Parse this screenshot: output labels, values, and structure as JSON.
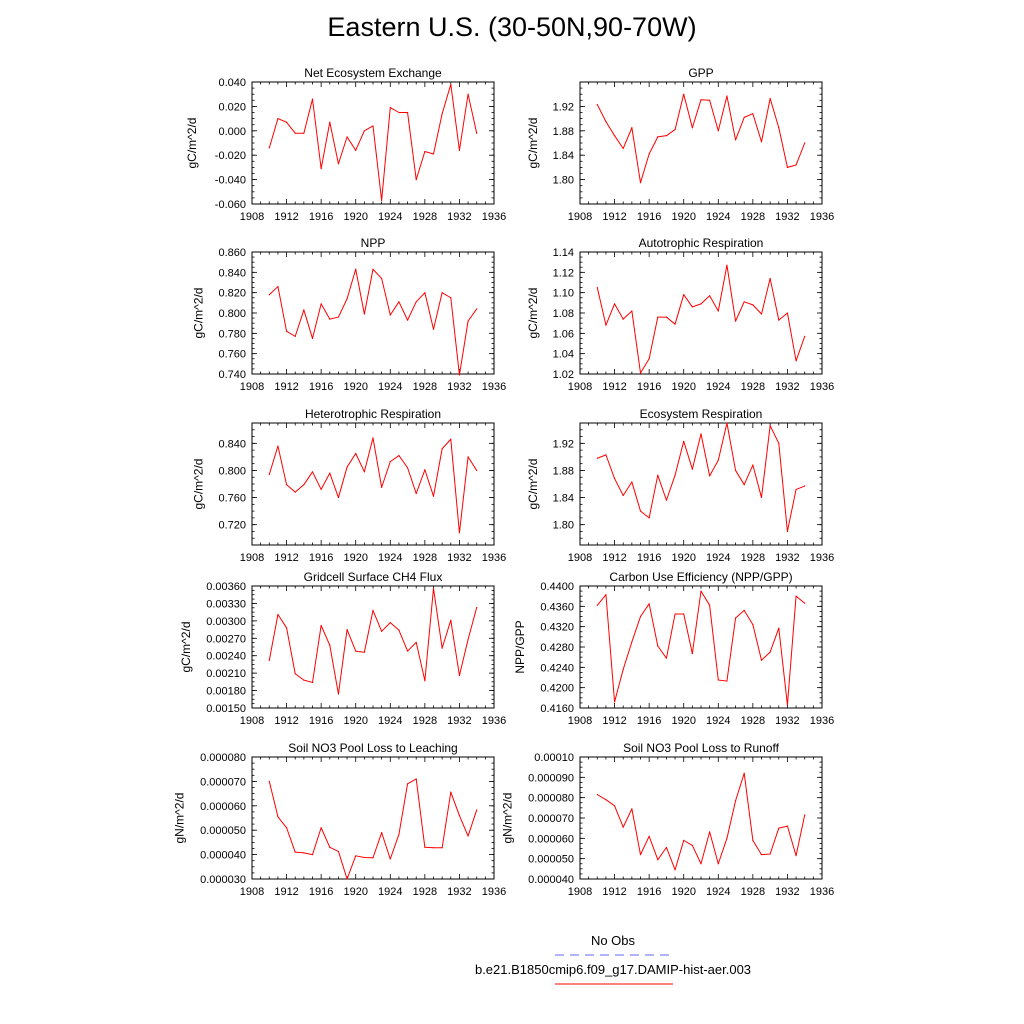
{
  "title": "Eastern U.S. (30-50N,90-70W)",
  "legend": {
    "obs_label": "No Obs",
    "obs_color": "#6666ff",
    "model_label": "b.e21.B1850cmip6.f09_g17.DAMIP-hist-aer.003",
    "model_color": "#ff0000"
  },
  "chart_data": [
    {
      "type": "line",
      "title": "Net Ecosystem Exchange",
      "ylabel": "gC/m^2/d",
      "xlim": [
        1908,
        1936
      ],
      "xticks": [
        1908,
        1912,
        1916,
        1920,
        1924,
        1928,
        1932,
        1936
      ],
      "xtick_labels": [
        "1908",
        "1912",
        "1916",
        "1920",
        "1924",
        "1928",
        "1932",
        "1936"
      ],
      "ylim": [
        -0.06,
        0.04
      ],
      "yticks": [
        -0.06,
        -0.04,
        -0.02,
        0.0,
        0.02,
        0.04
      ],
      "ytick_labels": [
        "-0.060",
        "-0.040",
        "-0.020",
        "0.000",
        "0.020",
        "0.040"
      ],
      "x": [
        1910,
        1911,
        1912,
        1913,
        1914,
        1915,
        1916,
        1917,
        1918,
        1919,
        1920,
        1921,
        1922,
        1923,
        1924,
        1925,
        1926,
        1927,
        1928,
        1929,
        1930,
        1931,
        1932,
        1933,
        1934
      ],
      "values": [
        -0.014,
        0.01,
        0.007,
        -0.002,
        -0.002,
        0.026,
        -0.031,
        0.007,
        -0.027,
        -0.005,
        -0.016,
        0.0,
        0.004,
        -0.057,
        0.019,
        0.015,
        0.015,
        -0.04,
        -0.017,
        -0.019,
        0.014,
        0.038,
        -0.016,
        0.03,
        -0.002
      ]
    },
    {
      "type": "line",
      "title": "GPP",
      "ylabel": "gC/m^2/d",
      "xlim": [
        1908,
        1936
      ],
      "xticks": [
        1908,
        1912,
        1916,
        1920,
        1924,
        1928,
        1932,
        1936
      ],
      "xtick_labels": [
        "1908",
        "1912",
        "1916",
        "1920",
        "1924",
        "1928",
        "1932",
        "1936"
      ],
      "ylim": [
        1.76,
        1.96
      ],
      "yticks": [
        1.8,
        1.84,
        1.88,
        1.92
      ],
      "ytick_labels": [
        "1.80",
        "1.84",
        "1.88",
        "1.92"
      ],
      "x": [
        1910,
        1911,
        1912,
        1913,
        1914,
        1915,
        1916,
        1917,
        1918,
        1919,
        1920,
        1921,
        1922,
        1923,
        1924,
        1925,
        1926,
        1927,
        1928,
        1929,
        1930,
        1931,
        1932,
        1933,
        1934
      ],
      "values": [
        1.923,
        1.895,
        1.872,
        1.851,
        1.885,
        1.795,
        1.842,
        1.87,
        1.872,
        1.882,
        1.94,
        1.885,
        1.931,
        1.93,
        1.88,
        1.937,
        1.865,
        1.902,
        1.908,
        1.862,
        1.933,
        1.885,
        1.82,
        1.824,
        1.86
      ]
    },
    {
      "type": "line",
      "title": "NPP",
      "ylabel": "gC/m^2/d",
      "xlim": [
        1908,
        1936
      ],
      "xticks": [
        1908,
        1912,
        1916,
        1920,
        1924,
        1928,
        1932,
        1936
      ],
      "xtick_labels": [
        "1908",
        "1912",
        "1916",
        "1920",
        "1924",
        "1928",
        "1932",
        "1936"
      ],
      "ylim": [
        0.74,
        0.86
      ],
      "yticks": [
        0.74,
        0.76,
        0.78,
        0.8,
        0.82,
        0.84,
        0.86
      ],
      "ytick_labels": [
        "0.740",
        "0.760",
        "0.780",
        "0.800",
        "0.820",
        "0.840",
        "0.860"
      ],
      "x": [
        1910,
        1911,
        1912,
        1913,
        1914,
        1915,
        1916,
        1917,
        1918,
        1919,
        1920,
        1921,
        1922,
        1923,
        1924,
        1925,
        1926,
        1927,
        1928,
        1929,
        1930,
        1931,
        1932,
        1933,
        1934
      ],
      "values": [
        0.818,
        0.826,
        0.782,
        0.777,
        0.803,
        0.775,
        0.809,
        0.794,
        0.796,
        0.814,
        0.843,
        0.799,
        0.843,
        0.834,
        0.798,
        0.811,
        0.793,
        0.811,
        0.82,
        0.784,
        0.82,
        0.815,
        0.739,
        0.792,
        0.804
      ]
    },
    {
      "type": "line",
      "title": "Autotrophic Respiration",
      "ylabel": "gC/m^2/d",
      "xlim": [
        1908,
        1936
      ],
      "xticks": [
        1908,
        1912,
        1916,
        1920,
        1924,
        1928,
        1932,
        1936
      ],
      "xtick_labels": [
        "1908",
        "1912",
        "1916",
        "1920",
        "1924",
        "1928",
        "1932",
        "1936"
      ],
      "ylim": [
        1.02,
        1.14
      ],
      "yticks": [
        1.02,
        1.04,
        1.06,
        1.08,
        1.1,
        1.12,
        1.14
      ],
      "ytick_labels": [
        "1.02",
        "1.04",
        "1.06",
        "1.08",
        "1.10",
        "1.12",
        "1.14"
      ],
      "x": [
        1910,
        1911,
        1912,
        1913,
        1914,
        1915,
        1916,
        1917,
        1918,
        1919,
        1920,
        1921,
        1922,
        1923,
        1924,
        1925,
        1926,
        1927,
        1928,
        1929,
        1930,
        1931,
        1932,
        1933,
        1934
      ],
      "values": [
        1.105,
        1.068,
        1.089,
        1.074,
        1.082,
        1.021,
        1.035,
        1.076,
        1.076,
        1.069,
        1.098,
        1.086,
        1.089,
        1.097,
        1.082,
        1.127,
        1.072,
        1.091,
        1.088,
        1.079,
        1.114,
        1.073,
        1.08,
        1.033,
        1.057
      ]
    },
    {
      "type": "line",
      "title": "Heterotrophic Respiration",
      "ylabel": "gC/m^2/d",
      "xlim": [
        1908,
        1936
      ],
      "xticks": [
        1908,
        1912,
        1916,
        1920,
        1924,
        1928,
        1932,
        1936
      ],
      "xtick_labels": [
        "1908",
        "1912",
        "1916",
        "1920",
        "1924",
        "1928",
        "1932",
        "1936"
      ],
      "ylim": [
        0.69,
        0.87
      ],
      "yticks": [
        0.72,
        0.76,
        0.8,
        0.84
      ],
      "ytick_labels": [
        "0.720",
        "0.760",
        "0.800",
        "0.840"
      ],
      "x": [
        1910,
        1911,
        1912,
        1913,
        1914,
        1915,
        1916,
        1917,
        1918,
        1919,
        1920,
        1921,
        1922,
        1923,
        1924,
        1925,
        1926,
        1927,
        1928,
        1929,
        1930,
        1931,
        1932,
        1933,
        1934
      ],
      "values": [
        0.794,
        0.836,
        0.779,
        0.768,
        0.779,
        0.798,
        0.772,
        0.796,
        0.76,
        0.805,
        0.825,
        0.798,
        0.848,
        0.775,
        0.813,
        0.822,
        0.804,
        0.766,
        0.801,
        0.762,
        0.832,
        0.846,
        0.708,
        0.82,
        0.8
      ]
    },
    {
      "type": "line",
      "title": "Ecosystem Respiration",
      "ylabel": "gC/m^2/d",
      "xlim": [
        1908,
        1936
      ],
      "xticks": [
        1908,
        1912,
        1916,
        1920,
        1924,
        1928,
        1932,
        1936
      ],
      "xtick_labels": [
        "1908",
        "1912",
        "1916",
        "1920",
        "1924",
        "1928",
        "1932",
        "1936"
      ],
      "ylim": [
        1.77,
        1.95
      ],
      "yticks": [
        1.8,
        1.84,
        1.88,
        1.92
      ],
      "ytick_labels": [
        "1.80",
        "1.84",
        "1.88",
        "1.92"
      ],
      "x": [
        1910,
        1911,
        1912,
        1913,
        1914,
        1915,
        1916,
        1917,
        1918,
        1919,
        1920,
        1921,
        1922,
        1923,
        1924,
        1925,
        1926,
        1927,
        1928,
        1929,
        1930,
        1931,
        1932,
        1933,
        1934
      ],
      "values": [
        1.898,
        1.903,
        1.868,
        1.843,
        1.863,
        1.82,
        1.81,
        1.873,
        1.836,
        1.873,
        1.923,
        1.882,
        1.934,
        1.872,
        1.895,
        1.95,
        1.88,
        1.859,
        1.888,
        1.84,
        1.946,
        1.92,
        1.79,
        1.852,
        1.857
      ]
    },
    {
      "type": "line",
      "title": "Gridcell Surface CH4 Flux",
      "ylabel": "gC/m^2/d",
      "xlim": [
        1908,
        1936
      ],
      "xticks": [
        1908,
        1912,
        1916,
        1920,
        1924,
        1928,
        1932,
        1936
      ],
      "xtick_labels": [
        "1908",
        "1912",
        "1916",
        "1920",
        "1924",
        "1928",
        "1932",
        "1936"
      ],
      "ylim": [
        0.0015,
        0.0036
      ],
      "yticks": [
        0.0015,
        0.0018,
        0.0021,
        0.0024,
        0.0027,
        0.003,
        0.0033,
        0.0036
      ],
      "ytick_labels": [
        "0.00150",
        "0.00180",
        "0.00210",
        "0.00240",
        "0.00270",
        "0.00300",
        "0.00330",
        "0.00360"
      ],
      "x": [
        1910,
        1911,
        1912,
        1913,
        1914,
        1915,
        1916,
        1917,
        1918,
        1919,
        1920,
        1921,
        1922,
        1923,
        1924,
        1925,
        1926,
        1927,
        1928,
        1929,
        1930,
        1931,
        1932,
        1933,
        1934
      ],
      "values": [
        0.00232,
        0.00311,
        0.00288,
        0.00209,
        0.00198,
        0.00194,
        0.00292,
        0.00258,
        0.00174,
        0.00285,
        0.00248,
        0.00246,
        0.00318,
        0.00282,
        0.00297,
        0.00284,
        0.00248,
        0.00263,
        0.00197,
        0.00356,
        0.00253,
        0.00301,
        0.00206,
        0.00268,
        0.00323
      ]
    },
    {
      "type": "line",
      "title": "Carbon Use Efficiency (NPP/GPP)",
      "ylabel": "NPP/GPP",
      "xlim": [
        1908,
        1936
      ],
      "xticks": [
        1908,
        1912,
        1916,
        1920,
        1924,
        1928,
        1932,
        1936
      ],
      "xtick_labels": [
        "1908",
        "1912",
        "1916",
        "1920",
        "1924",
        "1928",
        "1932",
        "1936"
      ],
      "ylim": [
        0.416,
        0.44
      ],
      "yticks": [
        0.416,
        0.42,
        0.424,
        0.428,
        0.432,
        0.436,
        0.44
      ],
      "ytick_labels": [
        "0.4160",
        "0.4200",
        "0.4240",
        "0.4280",
        "0.4320",
        "0.4360",
        "0.4400"
      ],
      "x": [
        1910,
        1911,
        1912,
        1913,
        1914,
        1915,
        1916,
        1917,
        1918,
        1919,
        1920,
        1921,
        1922,
        1923,
        1924,
        1925,
        1926,
        1927,
        1928,
        1929,
        1930,
        1931,
        1932,
        1933,
        1934
      ],
      "values": [
        0.4362,
        0.4383,
        0.4172,
        0.4236,
        0.429,
        0.434,
        0.4365,
        0.4282,
        0.4258,
        0.4345,
        0.4345,
        0.4267,
        0.439,
        0.4362,
        0.4215,
        0.4213,
        0.4337,
        0.4352,
        0.4324,
        0.4254,
        0.427,
        0.4317,
        0.4166,
        0.438,
        0.4366
      ]
    },
    {
      "type": "line",
      "title": "Soil NO3 Pool Loss to Leaching",
      "ylabel": "gN/m^2/d",
      "xlim": [
        1908,
        1936
      ],
      "xticks": [
        1908,
        1912,
        1916,
        1920,
        1924,
        1928,
        1932,
        1936
      ],
      "xtick_labels": [
        "1908",
        "1912",
        "1916",
        "1920",
        "1924",
        "1928",
        "1932",
        "1936"
      ],
      "ylim": [
        3e-05,
        8e-05
      ],
      "yticks": [
        3e-05,
        4e-05,
        5e-05,
        6e-05,
        7e-05,
        8e-05
      ],
      "ytick_labels": [
        "0.000030",
        "0.000040",
        "0.000050",
        "0.000060",
        "0.000070",
        "0.000080"
      ],
      "x": [
        1910,
        1911,
        1912,
        1913,
        1914,
        1915,
        1916,
        1917,
        1918,
        1919,
        1920,
        1921,
        1922,
        1923,
        1924,
        1925,
        1926,
        1927,
        1928,
        1929,
        1930,
        1931,
        1932,
        1933,
        1934
      ],
      "values": [
        7e-05,
        5.55e-05,
        5.1e-05,
        4.1e-05,
        4.07e-05,
        4e-05,
        5.1e-05,
        4.3e-05,
        4.13e-05,
        3e-05,
        3.95e-05,
        3.88e-05,
        3.87e-05,
        4.9e-05,
        3.82e-05,
        4.83e-05,
        6.9e-05,
        7.1e-05,
        4.3e-05,
        4.28e-05,
        4.28e-05,
        6.56e-05,
        5.6e-05,
        4.76e-05,
        5.83e-05
      ]
    },
    {
      "type": "line",
      "title": "Soil NO3 Pool Loss to Runoff",
      "ylabel": "gN/m^2/d",
      "xlim": [
        1908,
        1936
      ],
      "xticks": [
        1908,
        1912,
        1916,
        1920,
        1924,
        1928,
        1932,
        1936
      ],
      "xtick_labels": [
        "1908",
        "1912",
        "1916",
        "1920",
        "1924",
        "1928",
        "1932",
        "1936"
      ],
      "ylim": [
        4e-05,
        0.0001
      ],
      "yticks": [
        4e-05,
        5e-05,
        6e-05,
        7e-05,
        8e-05,
        9e-05,
        0.0001
      ],
      "ytick_labels": [
        "0.000040",
        "0.000050",
        "0.000060",
        "0.000070",
        "0.000080",
        "0.000090",
        "0.00010"
      ],
      "x": [
        1910,
        1911,
        1912,
        1913,
        1914,
        1915,
        1916,
        1917,
        1918,
        1919,
        1920,
        1921,
        1922,
        1923,
        1924,
        1925,
        1926,
        1927,
        1928,
        1929,
        1930,
        1931,
        1932,
        1933,
        1934
      ],
      "values": [
        8.15e-05,
        7.9e-05,
        7.6e-05,
        6.55e-05,
        7.45e-05,
        5.2e-05,
        6.1e-05,
        4.95e-05,
        5.55e-05,
        4.45e-05,
        5.9e-05,
        5.65e-05,
        4.75e-05,
        6.32e-05,
        4.75e-05,
        6e-05,
        7.85e-05,
        9.2e-05,
        5.9e-05,
        5.2e-05,
        5.23e-05,
        6.5e-05,
        6.6e-05,
        5.15e-05,
        7.15e-05
      ]
    }
  ]
}
